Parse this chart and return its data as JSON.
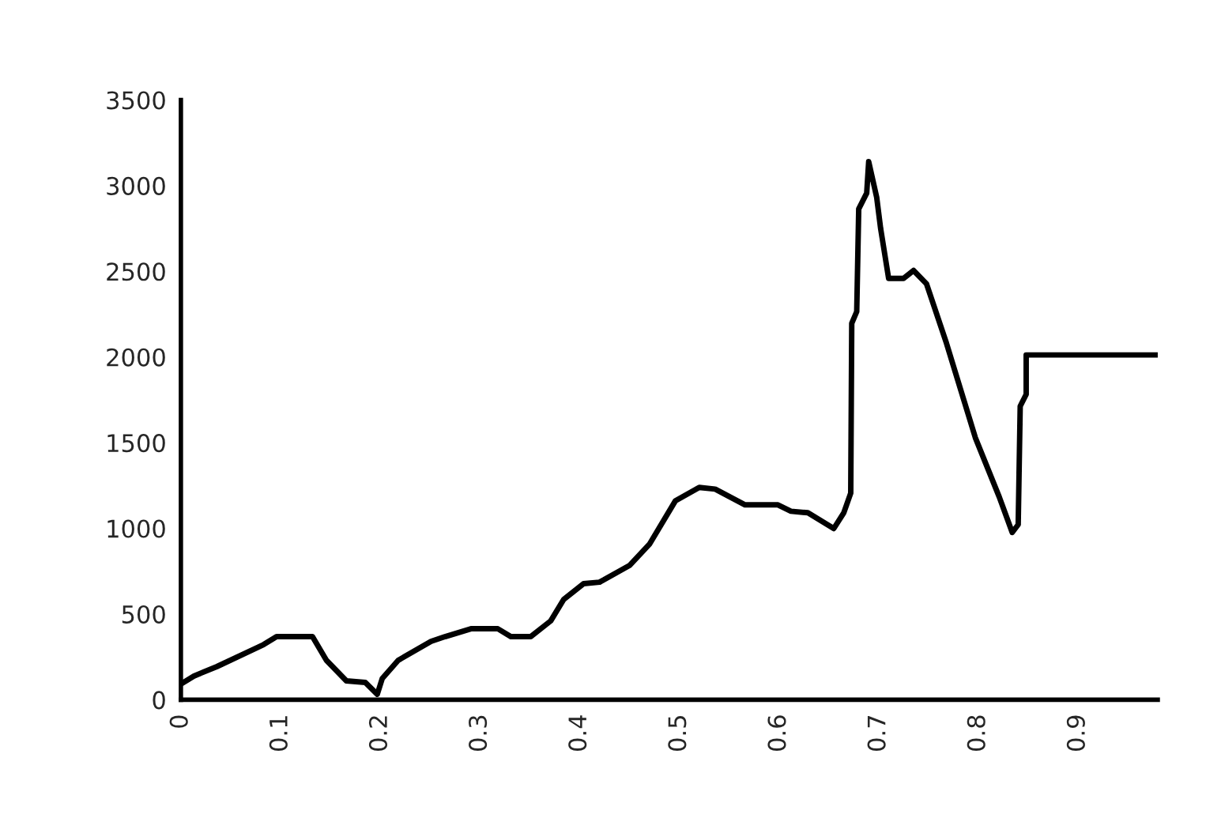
{
  "chart_data": {
    "type": "line",
    "x": [
      0,
      0.013,
      0.036,
      0.083,
      0.096,
      0.132,
      0.146,
      0.166,
      0.185,
      0.197,
      0.202,
      0.218,
      0.251,
      0.265,
      0.291,
      0.318,
      0.331,
      0.351,
      0.371,
      0.384,
      0.404,
      0.42,
      0.45,
      0.47,
      0.496,
      0.52,
      0.536,
      0.566,
      0.599,
      0.612,
      0.629,
      0.655,
      0.665,
      0.672,
      0.673,
      0.678,
      0.68,
      0.688,
      0.69,
      0.698,
      0.702,
      0.71,
      0.725,
      0.735,
      0.748,
      0.768,
      0.797,
      0.821,
      0.834,
      0.84,
      0.842,
      0.848,
      0.848,
      0.98
    ],
    "series": [
      {
        "color": "#000000",
        "values": [
          92,
          138,
          193,
          322,
          368,
          368,
          230,
          110,
          101,
          32,
          124,
          230,
          341,
          368,
          414,
          414,
          368,
          368,
          460,
          585,
          677,
          686,
          783,
          907,
          1160,
          1239,
          1229,
          1137,
          1137,
          1100,
          1091,
          999,
          1091,
          1206,
          2196,
          2265,
          2864,
          2956,
          3140,
          2933,
          2749,
          2459,
          2459,
          2505,
          2427,
          2081,
          1529,
          1183,
          976,
          1022,
          1713,
          1782,
          2012,
          2012
        ]
      }
    ],
    "xlim": [
      0,
      0.98
    ],
    "xticks": [
      0,
      0.1,
      0.2,
      0.3,
      0.4,
      0.5,
      0.6,
      0.7,
      0.8,
      0.9
    ],
    "ylim": [
      0,
      3500
    ],
    "yticks": [
      0,
      500,
      1000,
      1500,
      2000,
      2500,
      3000,
      3500
    ],
    "grid": false,
    "legend": false,
    "line_style": "solid",
    "marker": "none"
  }
}
